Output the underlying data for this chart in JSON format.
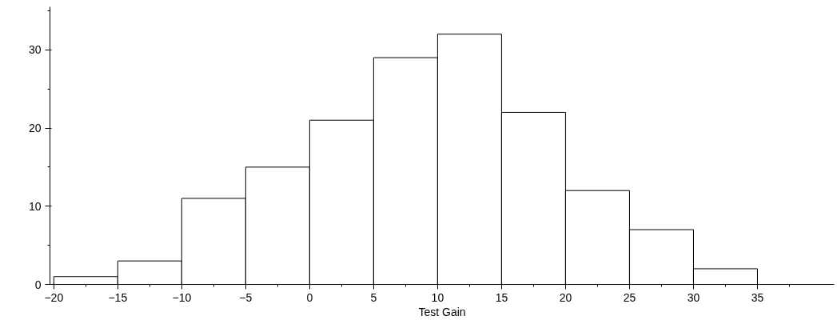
{
  "chart_data": {
    "type": "histogram",
    "xlabel": "Test Gain",
    "bins": [
      -20,
      -15,
      -10,
      -5,
      0,
      5,
      10,
      15,
      20,
      25,
      30,
      35,
      40
    ],
    "values": [
      1,
      3,
      11,
      15,
      21,
      29,
      32,
      22,
      12,
      7,
      2,
      0
    ],
    "xlim": [
      -20.3,
      41
    ],
    "ylim": [
      0,
      35.5
    ],
    "xticks": [
      -20,
      -15,
      -10,
      -5,
      0,
      5,
      10,
      15,
      20,
      25,
      30,
      35
    ],
    "yticks": [
      0,
      10,
      20,
      30
    ],
    "grid": false
  }
}
